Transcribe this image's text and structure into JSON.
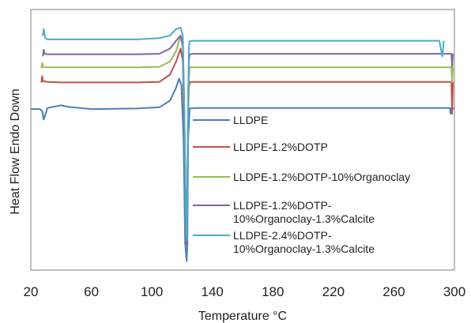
{
  "chart_data": {
    "type": "line",
    "xlabel": "Temperature °C",
    "ylabel": "Heat Flow Endo Down",
    "xlim": [
      20,
      300
    ],
    "ylim": [
      0,
      1
    ],
    "x_ticks": [
      "20",
      "60",
      "100",
      "140",
      "180",
      "220",
      "260",
      "300"
    ],
    "grid": false,
    "legend_position": "center",
    "series": [
      {
        "name": "LLDPE",
        "color": "#4a7ebb",
        "x": [
          20,
          26,
          27.5,
          28.5,
          31,
          40,
          45,
          60,
          90,
          105,
          112,
          116,
          118,
          119.5,
          121,
          122,
          123,
          123.5,
          124,
          125,
          130,
          150,
          200,
          250,
          290,
          297,
          297.5,
          298,
          299,
          300
        ],
        "y": [
          0.618,
          0.618,
          0.61,
          0.578,
          0.622,
          0.632,
          0.626,
          0.618,
          0.62,
          0.625,
          0.65,
          0.7,
          0.735,
          0.71,
          0.5,
          0.1,
          0.034,
          0.1,
          0.5,
          0.62,
          0.622,
          0.622,
          0.622,
          0.622,
          0.622,
          0.622,
          0.6,
          0.622,
          0.62,
          0.62
        ]
      },
      {
        "name": "LLDPE-1.2%DOTP",
        "color": "#c0504d",
        "x": [
          27,
          27.5,
          28,
          31,
          40,
          60,
          90,
          105,
          112,
          116,
          119,
          120.5,
          121.5,
          122.5,
          123,
          123.5,
          124,
          124.5,
          125,
          127,
          150,
          200,
          250,
          297,
          298,
          298.5,
          299
        ],
        "y": [
          0.72,
          0.745,
          0.725,
          0.722,
          0.72,
          0.72,
          0.72,
          0.722,
          0.75,
          0.8,
          0.85,
          0.8,
          0.5,
          0.15,
          0.098,
          0.3,
          0.6,
          0.7,
          0.72,
          0.722,
          0.722,
          0.722,
          0.722,
          0.722,
          0.722,
          0.6,
          0.722
        ]
      },
      {
        "name": "LLDPE-1.2%DOTP-10%Organoclay",
        "color": "#9bbb59",
        "x": [
          27,
          27.5,
          28,
          31,
          40,
          60,
          90,
          105,
          112,
          116,
          119,
          120.5,
          121.5,
          122.5,
          123,
          123.5,
          124,
          124.5,
          125,
          127,
          150,
          200,
          250,
          297,
          298,
          298.5,
          299
        ],
        "y": [
          0.775,
          0.795,
          0.78,
          0.778,
          0.778,
          0.778,
          0.778,
          0.78,
          0.8,
          0.84,
          0.9,
          0.85,
          0.6,
          0.18,
          0.113,
          0.3,
          0.6,
          0.74,
          0.778,
          0.778,
          0.778,
          0.778,
          0.778,
          0.778,
          0.778,
          0.72,
          0.778
        ]
      },
      {
        "name": "LLDPE-1.2%DOTP-\n10%Organoclay-1.3%Calcite",
        "color": "#8064a2",
        "x": [
          28,
          28.5,
          29,
          31,
          40,
          60,
          90,
          105,
          112,
          116,
          119,
          120.5,
          121.5,
          122.5,
          123,
          123.5,
          124,
          124.5,
          125,
          127,
          150,
          200,
          250,
          297,
          298,
          298.5,
          299
        ],
        "y": [
          0.82,
          0.846,
          0.83,
          0.828,
          0.828,
          0.828,
          0.828,
          0.83,
          0.85,
          0.88,
          0.9,
          0.86,
          0.6,
          0.2,
          0.16,
          0.35,
          0.65,
          0.8,
          0.828,
          0.83,
          0.83,
          0.83,
          0.83,
          0.83,
          0.83,
          0.78,
          0.83
        ]
      },
      {
        "name": "LLDPE-2.4%DOTP-\n10%Organoclay-1.3%Calcite",
        "color": "#4bacc6",
        "x": [
          28,
          28.5,
          29.5,
          31,
          40,
          60,
          90,
          105,
          112,
          116,
          119,
          120.5,
          121.5,
          122.5,
          123,
          123.5,
          124,
          124.5,
          125,
          127,
          150,
          200,
          250,
          290,
          291,
          292,
          293
        ],
        "y": [
          0.9,
          0.925,
          0.89,
          0.885,
          0.885,
          0.885,
          0.885,
          0.89,
          0.9,
          0.925,
          0.93,
          0.9,
          0.6,
          0.2,
          0.113,
          0.3,
          0.65,
          0.85,
          0.878,
          0.88,
          0.88,
          0.88,
          0.88,
          0.88,
          0.85,
          0.82,
          0.88
        ]
      }
    ]
  }
}
